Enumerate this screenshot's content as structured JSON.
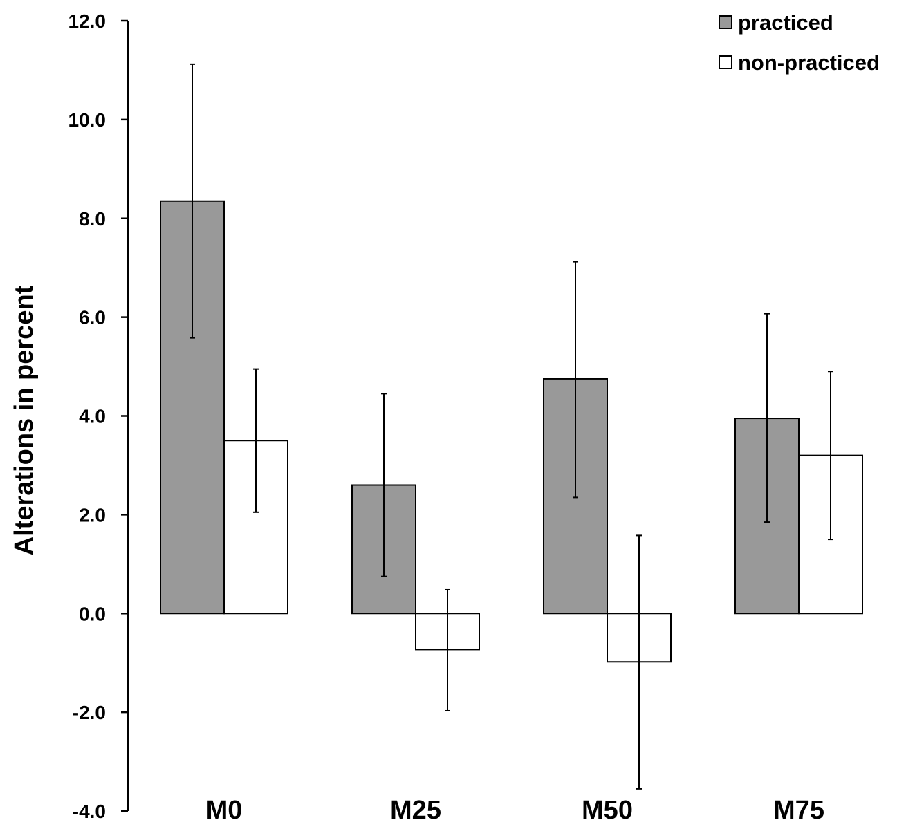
{
  "chart_data": {
    "type": "bar",
    "title": "",
    "xlabel": "",
    "ylabel": "Alterations in percent",
    "ylim": [
      -4.0,
      12.0
    ],
    "yticks": [
      "12.0",
      "10.0",
      "8.0",
      "6.0",
      "4.0",
      "2.0",
      "0.0",
      "-2.0",
      "-4.0"
    ],
    "ytick_values": [
      12,
      10,
      8,
      6,
      4,
      2,
      0,
      -2,
      -4
    ],
    "categories": [
      "M0",
      "M25",
      "M50",
      "M75"
    ],
    "series": [
      {
        "name": "practiced",
        "color": "#999999",
        "values": [
          8.35,
          2.6,
          4.75,
          3.95
        ],
        "error_low": [
          5.58,
          0.75,
          2.35,
          1.85
        ],
        "error_high": [
          11.12,
          4.45,
          7.12,
          6.07
        ]
      },
      {
        "name": "non-practiced",
        "color": "#ffffff",
        "values": [
          3.5,
          -0.73,
          -0.98,
          3.2
        ],
        "error_low": [
          2.05,
          -1.97,
          -3.55,
          1.5
        ],
        "error_high": [
          4.95,
          0.48,
          1.58,
          4.9
        ]
      }
    ],
    "legend": {
      "position": "top-right",
      "entries": [
        "practiced",
        "non-practiced"
      ]
    },
    "grid": false
  }
}
